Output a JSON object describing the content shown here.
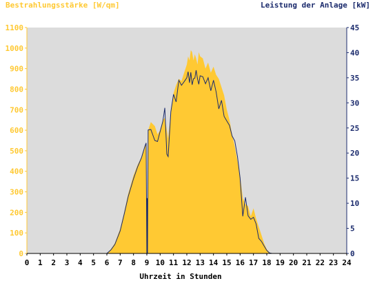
{
  "chart_data": {
    "type": "area",
    "title_left": "Bestrahlungsstärke [W/qm]",
    "title_right": "Leistung der Anlage [kW]",
    "xlabel": "Uhrzeit in Stunden",
    "xlim": [
      0,
      24
    ],
    "x_ticks": [
      "0",
      "1",
      "2",
      "3",
      "4",
      "5",
      "6",
      "7",
      "8",
      "9",
      "10",
      "11",
      "12",
      "13",
      "14",
      "15",
      "16",
      "17",
      "18",
      "19",
      "20",
      "21",
      "22",
      "23",
      "24"
    ],
    "y_left": {
      "lim": [
        0,
        1100
      ],
      "ticks": [
        "0",
        "100",
        "200",
        "300",
        "400",
        "500",
        "600",
        "700",
        "800",
        "900",
        "1000",
        "1100"
      ],
      "color": "#ffc933"
    },
    "y_right": {
      "lim": [
        0,
        45
      ],
      "ticks": [
        "0",
        "5",
        "10",
        "15",
        "20",
        "25",
        "30",
        "35",
        "40",
        "45"
      ],
      "color": "#1a2a6c"
    },
    "plot_background": "#dcdcdc",
    "grid": false,
    "series": [
      {
        "axis": "left",
        "render": "area",
        "color": "#ffc933",
        "x": [
          0,
          6.0,
          6.3,
          6.6,
          7.0,
          7.3,
          7.6,
          8.0,
          8.3,
          8.6,
          8.85,
          8.95,
          9.0,
          9.02,
          9.05,
          9.1,
          9.3,
          9.6,
          9.8,
          10.0,
          10.2,
          10.35,
          10.5,
          10.6,
          10.8,
          11.0,
          11.2,
          11.4,
          11.6,
          11.8,
          12.0,
          12.1,
          12.2,
          12.3,
          12.4,
          12.5,
          12.6,
          12.7,
          12.8,
          12.9,
          13.0,
          13.2,
          13.4,
          13.6,
          13.8,
          14.0,
          14.2,
          14.4,
          14.6,
          14.8,
          15.0,
          15.2,
          15.4,
          15.6,
          15.8,
          16.0,
          16.2,
          16.4,
          16.6,
          16.8,
          17.0,
          17.2,
          17.4,
          17.6,
          17.8,
          18.0,
          18.2,
          18.4,
          18.6,
          18.8,
          19.0,
          24
        ],
        "y": [
          0,
          0,
          20,
          50,
          120,
          200,
          290,
          380,
          430,
          470,
          520,
          540,
          0,
          0,
          0,
          600,
          640,
          620,
          580,
          600,
          650,
          660,
          600,
          560,
          680,
          780,
          820,
          850,
          840,
          880,
          920,
          960,
          940,
          990,
          980,
          940,
          970,
          950,
          920,
          980,
          960,
          950,
          900,
          930,
          880,
          910,
          870,
          850,
          810,
          770,
          700,
          650,
          580,
          520,
          450,
          380,
          270,
          240,
          230,
          180,
          220,
          170,
          130,
          90,
          50,
          20,
          5,
          0,
          0,
          0,
          0,
          0
        ]
      },
      {
        "axis": "right",
        "render": "line",
        "color": "#1a2a6c",
        "x": [
          0,
          6.0,
          6.3,
          6.6,
          7.0,
          7.3,
          7.6,
          8.0,
          8.3,
          8.6,
          8.85,
          8.95,
          9.0,
          9.02,
          9.05,
          9.1,
          9.3,
          9.6,
          9.8,
          10.0,
          10.2,
          10.35,
          10.5,
          10.6,
          10.8,
          11.0,
          11.2,
          11.4,
          11.6,
          11.8,
          12.0,
          12.1,
          12.2,
          12.3,
          12.4,
          12.5,
          12.6,
          12.7,
          12.8,
          12.9,
          13.0,
          13.2,
          13.4,
          13.6,
          13.8,
          14.0,
          14.2,
          14.4,
          14.6,
          14.8,
          15.0,
          15.2,
          15.4,
          15.6,
          15.8,
          16.0,
          16.2,
          16.4,
          16.6,
          16.8,
          17.0,
          17.2,
          17.4,
          17.6,
          17.8,
          18.0,
          18.2,
          18.4,
          18.6,
          18.8,
          19.0,
          24
        ],
        "y": [
          0,
          0,
          0.7,
          1.8,
          4.5,
          7.8,
          11.3,
          14.9,
          17.2,
          19.1,
          21.3,
          22.0,
          0,
          11.0,
          0,
          24.6,
          24.7,
          22.5,
          22.3,
          24.3,
          26.3,
          29.0,
          19.8,
          19.3,
          28.2,
          31.7,
          30.2,
          34.5,
          33.5,
          34.2,
          35.0,
          36.2,
          34.0,
          36.1,
          33.6,
          34.8,
          34.9,
          36.5,
          34.8,
          33.7,
          35.4,
          35.2,
          33.8,
          35.0,
          32.4,
          34.5,
          32.2,
          28.8,
          30.5,
          27.3,
          26.4,
          25.5,
          23.4,
          22.4,
          19.3,
          15.0,
          7.4,
          11.2,
          7.5,
          6.8,
          7.2,
          5.9,
          3.0,
          2.4,
          1.5,
          0.6,
          0.1,
          0,
          0,
          0,
          0,
          0
        ]
      }
    ]
  }
}
